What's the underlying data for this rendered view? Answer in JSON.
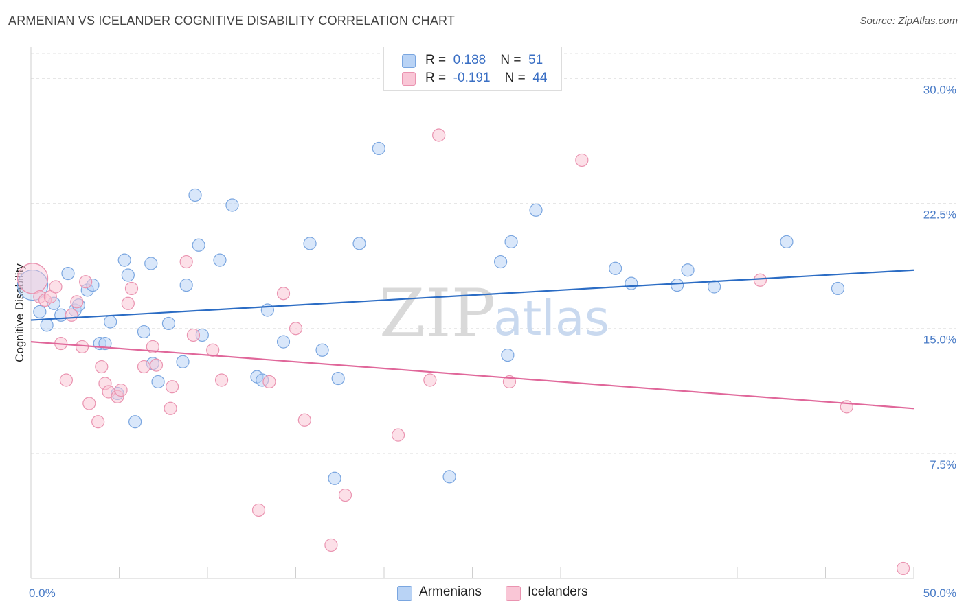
{
  "header": {
    "title": "ARMENIAN VS ICELANDER COGNITIVE DISABILITY CORRELATION CHART",
    "source": "Source: ZipAtlas.com"
  },
  "legend": {
    "rows": [
      {
        "r_label": "R =",
        "r_value": "0.188",
        "n_label": "N =",
        "n_value": "51"
      },
      {
        "r_label": "R =",
        "r_value": "-0.191",
        "n_label": "N =",
        "n_value": "44"
      }
    ]
  },
  "bottom_legend": [
    "Armenians",
    "Icelanders"
  ],
  "colors": {
    "armenians_fill": "#b9d3f5",
    "armenians_stroke": "#7aa6e0",
    "armenians_line": "#2b6cc4",
    "icelanders_fill": "#f9c6d6",
    "icelanders_stroke": "#ea93b0",
    "icelanders_line": "#e0679a"
  },
  "chart_data": {
    "type": "scatter",
    "ylabel": "Cognitive Disability",
    "xlim": [
      0,
      50
    ],
    "ylim": [
      0,
      31.5
    ],
    "x_tick_labels": [
      "0.0%",
      "50.0%"
    ],
    "y_ticks": [
      7.5,
      15.0,
      22.5,
      30.0
    ],
    "y_tick_labels": [
      "7.5%",
      "15.0%",
      "22.5%",
      "30.0%"
    ],
    "grid": true,
    "series": [
      {
        "name": "Armenians",
        "points": [
          [
            0.1,
            17.6
          ],
          [
            0.5,
            16.0
          ],
          [
            0.9,
            15.2
          ],
          [
            1.3,
            16.5
          ],
          [
            1.7,
            15.8
          ],
          [
            2.1,
            18.3
          ],
          [
            2.5,
            16.1
          ],
          [
            2.7,
            16.4
          ],
          [
            3.2,
            17.3
          ],
          [
            3.5,
            17.6
          ],
          [
            3.9,
            14.1
          ],
          [
            4.2,
            14.1
          ],
          [
            4.5,
            15.4
          ],
          [
            4.9,
            11.1
          ],
          [
            5.3,
            19.1
          ],
          [
            5.5,
            18.2
          ],
          [
            5.9,
            9.4
          ],
          [
            6.4,
            14.8
          ],
          [
            6.8,
            18.9
          ],
          [
            6.9,
            12.9
          ],
          [
            7.2,
            11.8
          ],
          [
            7.8,
            15.3
          ],
          [
            8.6,
            13.0
          ],
          [
            8.8,
            17.6
          ],
          [
            9.3,
            23.0
          ],
          [
            9.5,
            20.0
          ],
          [
            9.7,
            14.6
          ],
          [
            10.7,
            19.1
          ],
          [
            11.4,
            22.4
          ],
          [
            12.8,
            12.1
          ],
          [
            13.1,
            11.9
          ],
          [
            13.4,
            16.1
          ],
          [
            14.3,
            14.2
          ],
          [
            15.8,
            20.1
          ],
          [
            16.5,
            13.7
          ],
          [
            17.2,
            6.0
          ],
          [
            17.4,
            12.0
          ],
          [
            18.6,
            20.1
          ],
          [
            19.7,
            25.8
          ],
          [
            23.7,
            6.1
          ],
          [
            26.6,
            19.0
          ],
          [
            27.0,
            13.4
          ],
          [
            27.2,
            20.2
          ],
          [
            28.6,
            22.1
          ],
          [
            33.1,
            18.6
          ],
          [
            34.0,
            17.7
          ],
          [
            36.6,
            17.6
          ],
          [
            37.2,
            18.5
          ],
          [
            38.7,
            17.5
          ],
          [
            42.8,
            20.2
          ],
          [
            45.7,
            17.4
          ]
        ]
      },
      {
        "name": "Icelanders",
        "points": [
          [
            0.1,
            18.0
          ],
          [
            0.5,
            16.9
          ],
          [
            0.8,
            16.7
          ],
          [
            1.1,
            16.9
          ],
          [
            1.4,
            17.5
          ],
          [
            1.7,
            14.1
          ],
          [
            2.0,
            11.9
          ],
          [
            2.3,
            15.8
          ],
          [
            2.6,
            16.6
          ],
          [
            2.9,
            13.9
          ],
          [
            3.1,
            17.8
          ],
          [
            3.3,
            10.5
          ],
          [
            3.8,
            9.4
          ],
          [
            4.0,
            12.7
          ],
          [
            4.2,
            11.7
          ],
          [
            4.4,
            11.2
          ],
          [
            4.9,
            10.9
          ],
          [
            5.1,
            11.3
          ],
          [
            5.5,
            16.5
          ],
          [
            5.7,
            17.4
          ],
          [
            6.4,
            12.7
          ],
          [
            6.9,
            13.9
          ],
          [
            7.1,
            12.8
          ],
          [
            7.9,
            10.2
          ],
          [
            8.0,
            11.5
          ],
          [
            8.8,
            19.0
          ],
          [
            9.2,
            14.6
          ],
          [
            10.3,
            13.7
          ],
          [
            10.8,
            11.9
          ],
          [
            12.9,
            4.1
          ],
          [
            13.5,
            11.8
          ],
          [
            14.3,
            17.1
          ],
          [
            15.0,
            15.0
          ],
          [
            15.5,
            9.5
          ],
          [
            17.0,
            2.0
          ],
          [
            17.8,
            5.0
          ],
          [
            20.8,
            8.6
          ],
          [
            22.6,
            11.9
          ],
          [
            23.1,
            26.6
          ],
          [
            27.1,
            11.8
          ],
          [
            31.2,
            25.1
          ],
          [
            41.3,
            17.9
          ],
          [
            46.2,
            10.3
          ],
          [
            49.4,
            0.6
          ]
        ]
      }
    ],
    "trend_lines": [
      {
        "series": "Armenians",
        "x": [
          0,
          50
        ],
        "y": [
          15.5,
          18.5
        ]
      },
      {
        "series": "Icelanders",
        "x": [
          0,
          50
        ],
        "y": [
          14.2,
          10.2
        ]
      }
    ]
  }
}
